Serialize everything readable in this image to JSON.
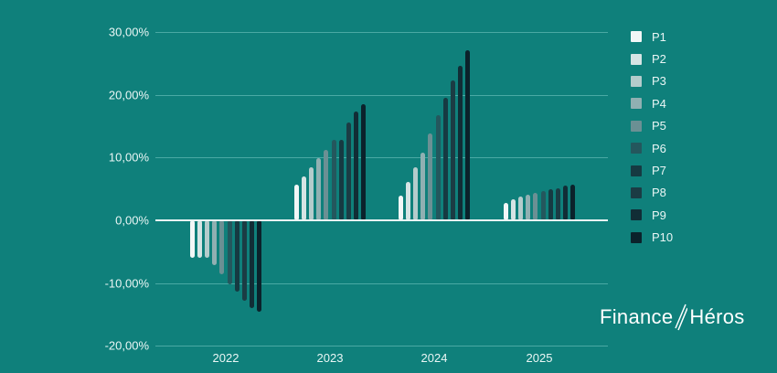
{
  "chart_data": {
    "type": "bar",
    "title": "",
    "xlabel": "",
    "ylabel": "",
    "categories": [
      "2022",
      "2023",
      "2024",
      "2025"
    ],
    "ylim": [
      -20,
      30
    ],
    "yticks": [
      "30,00%",
      "20,00%",
      "10,00%",
      "0,00%",
      "-10,00%",
      "-20,00%"
    ],
    "ytick_values": [
      30,
      20,
      10,
      0,
      -10,
      -20
    ],
    "grid": true,
    "legend_position": "right",
    "series": [
      {
        "name": "P1",
        "color": "#f2f7f7",
        "values": [
          -5.9,
          5.7,
          3.9,
          2.8
        ]
      },
      {
        "name": "P2",
        "color": "#d6e4e4",
        "values": [
          -5.9,
          7.0,
          6.1,
          3.3
        ]
      },
      {
        "name": "P3",
        "color": "#b4cccc",
        "values": [
          -5.9,
          8.4,
          8.4,
          3.8
        ]
      },
      {
        "name": "P4",
        "color": "#90b0b2",
        "values": [
          -7.1,
          9.9,
          10.8,
          4.1
        ]
      },
      {
        "name": "P5",
        "color": "#6b9094",
        "values": [
          -8.6,
          11.2,
          13.8,
          4.4
        ]
      },
      {
        "name": "P6",
        "color": "#24575d",
        "values": [
          -10.2,
          12.8,
          16.7,
          4.7
        ]
      },
      {
        "name": "P7",
        "color": "#163a42",
        "values": [
          -11.4,
          12.8,
          19.5,
          4.9
        ]
      },
      {
        "name": "P8",
        "color": "#1b3c44",
        "values": [
          -12.8,
          15.6,
          22.3,
          5.1
        ]
      },
      {
        "name": "P9",
        "color": "#112d36",
        "values": [
          -14.0,
          17.3,
          24.6,
          5.5
        ]
      },
      {
        "name": "P10",
        "color": "#0b222b",
        "values": [
          -14.6,
          18.5,
          27.1,
          5.7
        ]
      }
    ]
  },
  "brand": {
    "left": "Finance",
    "right": "Héros"
  },
  "colors": {
    "background": "#0f807b",
    "gridline": "#4aa9a4",
    "text": "#eaf6f5"
  }
}
